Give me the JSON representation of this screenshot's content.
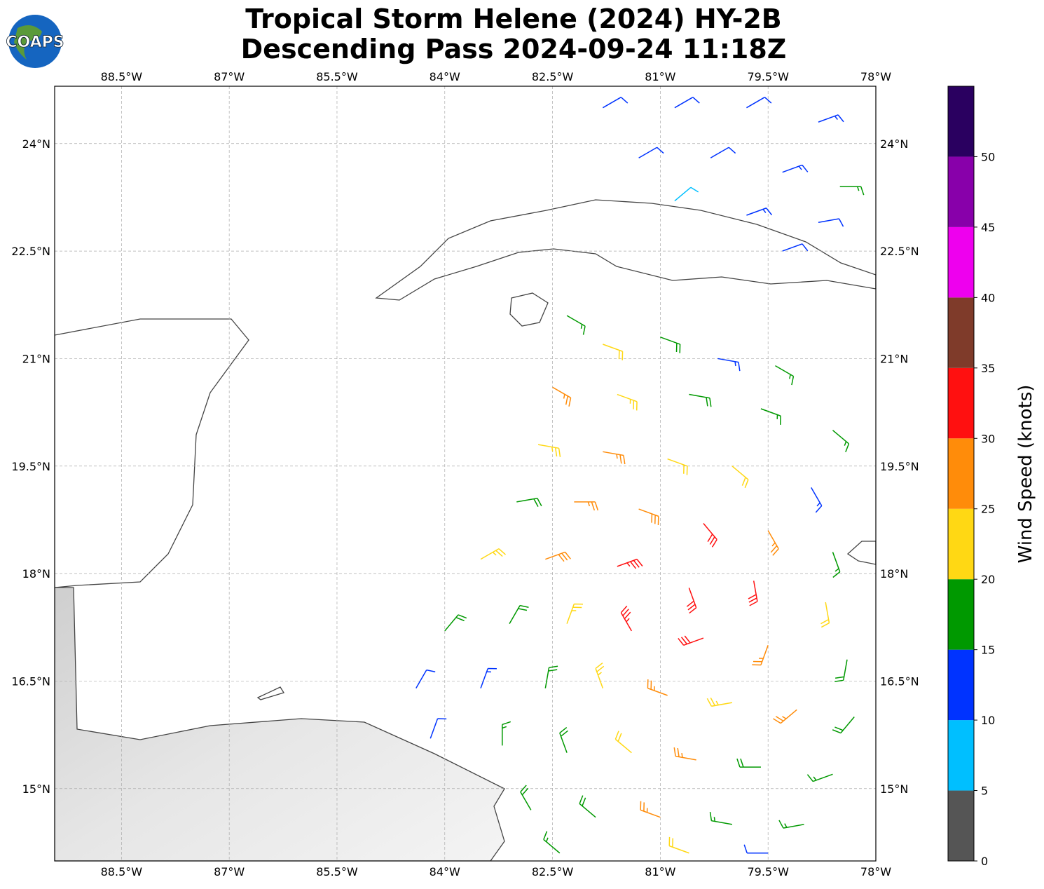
{
  "title": "Tropical Storm Helene (2024) HY-2B",
  "subtitle": "Descending Pass 2024-09-24 11:18Z",
  "logo": "COAPS",
  "map": {
    "lonlim": [
      -89.43,
      -78
    ],
    "latlim": [
      13.99,
      24.8
    ],
    "grid": true,
    "lon_ticks": [
      {
        "value": -88.5,
        "label": "88.5°W"
      },
      {
        "value": -87,
        "label": "87°W"
      },
      {
        "value": -85.5,
        "label": "85.5°W"
      },
      {
        "value": -84,
        "label": "84°W"
      },
      {
        "value": -82.5,
        "label": "82.5°W"
      },
      {
        "value": -81,
        "label": "81°W"
      },
      {
        "value": -79.5,
        "label": "79.5°W"
      },
      {
        "value": -78,
        "label": "78°W"
      }
    ],
    "lat_ticks": [
      {
        "value": 24,
        "label": "24°N"
      },
      {
        "value": 22.5,
        "label": "22.5°N"
      },
      {
        "value": 21,
        "label": "21°N"
      },
      {
        "value": 19.5,
        "label": "19.5°N"
      },
      {
        "value": 18,
        "label": "18°N"
      },
      {
        "value": 16.5,
        "label": "16.5°N"
      },
      {
        "value": 15,
        "label": "15°N"
      }
    ]
  },
  "barbs": {
    "lon": [
      -81.8,
      -80.8,
      -79.8,
      -78.8,
      -81.3,
      -80.3,
      -79.3,
      -78.5,
      -80.8,
      -79.8,
      -78.8,
      -79.3,
      -82.3,
      -81.8,
      -81.0,
      -80.2,
      -79.4,
      -82.5,
      -81.6,
      -80.6,
      -79.6,
      -78.6,
      -82.7,
      -81.8,
      -80.9,
      -80.0,
      -78.9,
      -83.0,
      -82.2,
      -81.3,
      -80.4,
      -79.5,
      -78.6,
      -83.5,
      -82.6,
      -81.6,
      -80.6,
      -79.7,
      -78.7,
      -84.0,
      -83.1,
      -82.3,
      -81.4,
      -80.4,
      -79.5,
      -78.4,
      -84.4,
      -83.5,
      -82.6,
      -81.8,
      -80.9,
      -80.0,
      -79.1,
      -78.3,
      -84.2,
      -83.2,
      -82.3,
      -81.4,
      -80.5,
      -79.6,
      -78.6,
      -82.8,
      -81.9,
      -81.0,
      -80.0,
      -79.0,
      -82.4,
      -80.6,
      -79.5
    ],
    "lat": [
      24.5,
      24.5,
      24.5,
      24.3,
      23.8,
      23.8,
      23.6,
      23.4,
      23.2,
      23.0,
      22.9,
      22.5,
      21.6,
      21.2,
      21.3,
      21.0,
      20.9,
      20.6,
      20.5,
      20.5,
      20.3,
      20.0,
      19.8,
      19.7,
      19.6,
      19.5,
      19.2,
      19.0,
      19.0,
      18.9,
      18.7,
      18.6,
      18.3,
      18.2,
      18.2,
      18.1,
      17.8,
      17.9,
      17.6,
      17.2,
      17.3,
      17.3,
      17.2,
      17.1,
      17.0,
      16.8,
      16.4,
      16.4,
      16.4,
      16.4,
      16.3,
      16.2,
      16.1,
      16.0,
      15.7,
      15.6,
      15.5,
      15.5,
      15.4,
      15.3,
      15.2,
      14.7,
      14.6,
      14.6,
      14.5,
      14.5,
      14.1,
      14.1,
      14.1
    ],
    "speed": [
      12,
      12,
      12,
      13,
      12,
      11,
      14,
      17,
      8,
      13,
      12,
      12,
      17,
      22,
      18,
      14,
      17,
      27,
      23,
      18,
      17,
      16,
      23,
      26,
      22,
      22,
      14,
      18,
      27,
      28,
      32,
      25,
      17,
      23,
      28,
      33,
      32,
      30,
      22,
      18,
      18,
      23,
      33,
      32,
      27,
      18,
      12,
      14,
      18,
      23,
      27,
      24,
      26,
      18,
      12,
      17,
      18,
      22,
      25,
      18,
      16,
      18,
      18,
      26,
      17,
      15,
      17,
      22,
      12
    ],
    "direction": [
      60,
      60,
      60,
      70,
      60,
      60,
      70,
      90,
      50,
      70,
      80,
      70,
      120,
      110,
      110,
      100,
      120,
      120,
      110,
      100,
      110,
      130,
      100,
      100,
      110,
      130,
      150,
      80,
      90,
      110,
      140,
      150,
      160,
      60,
      70,
      70,
      160,
      170,
      170,
      40,
      30,
      20,
      330,
      250,
      200,
      190,
      30,
      20,
      10,
      340,
      290,
      260,
      230,
      220,
      20,
      360,
      340,
      310,
      280,
      270,
      250,
      330,
      310,
      290,
      280,
      260,
      310,
      290,
      270
    ]
  },
  "colorbar": {
    "label": "Wind Speed (knots)",
    "lim": [
      0,
      55
    ],
    "bounds": [
      0,
      5,
      10,
      15,
      20,
      25,
      30,
      35,
      40,
      45,
      50,
      55
    ],
    "colors": [
      "#555555",
      "#00bfff",
      "#0033ff",
      "#009900",
      "#ffd814",
      "#ff8c0a",
      "#ff1010",
      "#7f3b2a",
      "#ee00ee",
      "#8800aa",
      "#2a0060"
    ],
    "ticks": [
      0,
      5,
      10,
      15,
      20,
      25,
      30,
      35,
      40,
      45,
      50
    ]
  }
}
